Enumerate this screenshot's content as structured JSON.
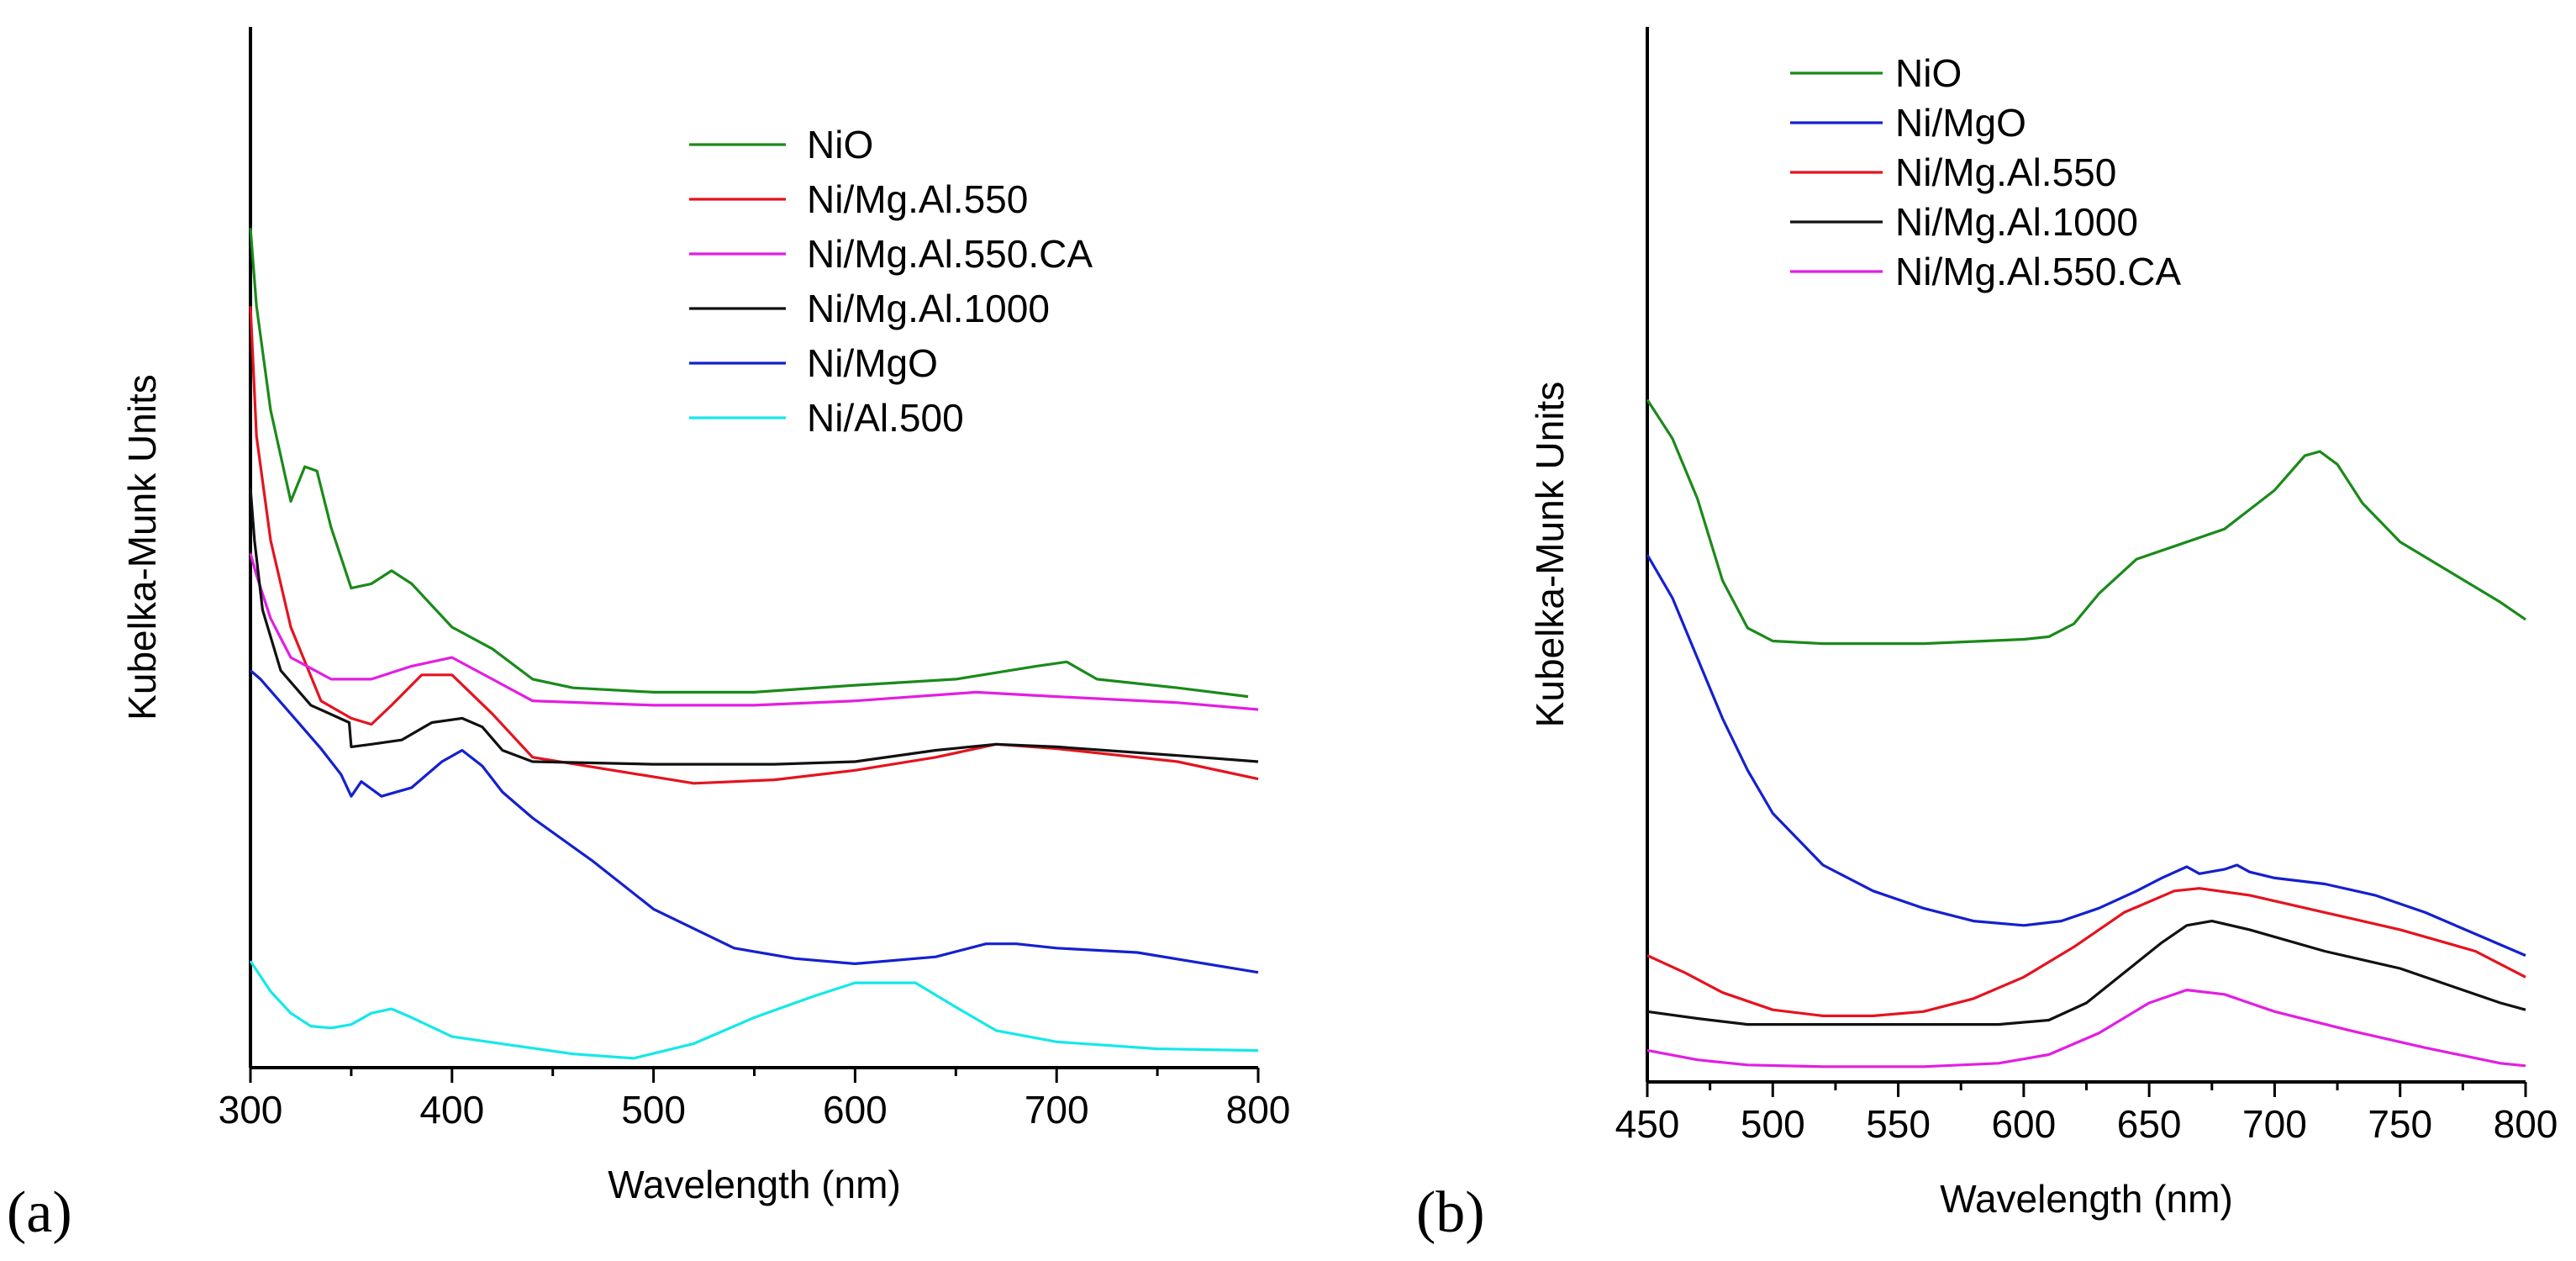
{
  "chart_data": [
    {
      "panel_label": "(a)",
      "type": "line",
      "xlabel": "Wavelength (nm)",
      "ylabel": "Kubelka-Munk Units",
      "xlim": [
        300,
        800
      ],
      "xticks": [
        300,
        400,
        500,
        600,
        700,
        800
      ],
      "ylim": [
        0,
        1
      ],
      "legend_position": "top-right",
      "series": [
        {
          "name": "NiO",
          "color": "#1a8a1a",
          "x": [
            300,
            303,
            310,
            320,
            327,
            333,
            340,
            350,
            360,
            370,
            380,
            400,
            420,
            440,
            460,
            500,
            550,
            600,
            650,
            690,
            705,
            720,
            760,
            795
          ],
          "y": [
            0.96,
            0.87,
            0.75,
            0.645,
            0.685,
            0.68,
            0.615,
            0.545,
            0.55,
            0.565,
            0.55,
            0.5,
            0.475,
            0.44,
            0.43,
            0.425,
            0.425,
            0.433,
            0.44,
            0.455,
            0.46,
            0.44,
            0.43,
            0.42
          ]
        },
        {
          "name": "Ni/Mg.Al.550",
          "color": "#e5131f",
          "x": [
            300,
            303,
            310,
            320,
            335,
            350,
            360,
            370,
            385,
            400,
            420,
            440,
            480,
            520,
            560,
            600,
            640,
            670,
            700,
            760,
            800
          ],
          "y": [
            0.87,
            0.72,
            0.6,
            0.5,
            0.415,
            0.395,
            0.388,
            0.41,
            0.445,
            0.445,
            0.4,
            0.35,
            0.335,
            0.32,
            0.324,
            0.335,
            0.35,
            0.365,
            0.36,
            0.345,
            0.325
          ]
        },
        {
          "name": "Ni/Mg.Al.550.CA",
          "color": "#e21ee2",
          "x": [
            300,
            303,
            310,
            320,
            340,
            360,
            380,
            400,
            420,
            440,
            500,
            550,
            600,
            660,
            700,
            760,
            800
          ],
          "y": [
            0.585,
            0.56,
            0.51,
            0.465,
            0.44,
            0.44,
            0.455,
            0.465,
            0.44,
            0.415,
            0.41,
            0.41,
            0.415,
            0.425,
            0.42,
            0.413,
            0.405
          ]
        },
        {
          "name": "Ni/Mg.Al.1000",
          "color": "#111111",
          "x": [
            300,
            302,
            306,
            315,
            330,
            349,
            350,
            360,
            375,
            390,
            405,
            415,
            425,
            440,
            500,
            560,
            600,
            640,
            670,
            700,
            760,
            800
          ],
          "y": [
            0.66,
            0.6,
            0.52,
            0.45,
            0.41,
            0.39,
            0.362,
            0.365,
            0.37,
            0.39,
            0.395,
            0.385,
            0.358,
            0.345,
            0.342,
            0.342,
            0.345,
            0.358,
            0.365,
            0.362,
            0.352,
            0.345
          ]
        },
        {
          "name": "Ni/MgO",
          "color": "#1420cf",
          "x": [
            300,
            305,
            320,
            335,
            345,
            350,
            355,
            365,
            380,
            395,
            405,
            415,
            425,
            440,
            470,
            500,
            540,
            570,
            600,
            640,
            665,
            680,
            700,
            740,
            800
          ],
          "y": [
            0.45,
            0.44,
            0.4,
            0.36,
            0.33,
            0.305,
            0.322,
            0.305,
            0.315,
            0.345,
            0.358,
            0.34,
            0.31,
            0.28,
            0.23,
            0.175,
            0.13,
            0.118,
            0.112,
            0.12,
            0.135,
            0.135,
            0.13,
            0.125,
            0.102
          ]
        },
        {
          "name": "Ni/Al.500",
          "color": "#14e8e8",
          "x": [
            300,
            310,
            320,
            330,
            340,
            350,
            360,
            370,
            380,
            400,
            430,
            460,
            490,
            520,
            550,
            580,
            600,
            630,
            650,
            670,
            700,
            750,
            800
          ],
          "y": [
            0.115,
            0.08,
            0.055,
            0.04,
            0.038,
            0.042,
            0.055,
            0.06,
            0.05,
            0.028,
            0.018,
            0.008,
            0.003,
            0.02,
            0.05,
            0.075,
            0.09,
            0.09,
            0.062,
            0.035,
            0.022,
            0.014,
            0.012
          ]
        }
      ]
    },
    {
      "panel_label": "(b)",
      "type": "line",
      "xlabel": "Wavelength (nm)",
      "ylabel": "Kubelka-Munk Units",
      "xlim": [
        450,
        800
      ],
      "xticks": [
        450,
        500,
        550,
        600,
        650,
        700,
        750,
        800
      ],
      "ylim": [
        0,
        1
      ],
      "legend_position": "top-left",
      "series": [
        {
          "name": "NiO",
          "color": "#1a8a1a",
          "x": [
            450,
            460,
            470,
            480,
            490,
            500,
            520,
            560,
            600,
            610,
            620,
            630,
            645,
            660,
            680,
            700,
            712,
            718,
            725,
            735,
            750,
            770,
            790,
            800
          ],
          "y": [
            0.78,
            0.735,
            0.665,
            0.57,
            0.515,
            0.5,
            0.497,
            0.497,
            0.502,
            0.505,
            0.52,
            0.555,
            0.595,
            0.61,
            0.63,
            0.675,
            0.715,
            0.72,
            0.705,
            0.66,
            0.615,
            0.58,
            0.545,
            0.525
          ]
        },
        {
          "name": "Ni/MgO",
          "color": "#1420cf",
          "x": [
            450,
            460,
            470,
            480,
            490,
            500,
            520,
            540,
            560,
            580,
            600,
            615,
            630,
            645,
            655,
            665,
            670,
            680,
            685,
            690,
            700,
            720,
            740,
            760,
            780,
            800
          ],
          "y": [
            0.6,
            0.55,
            0.48,
            0.41,
            0.35,
            0.3,
            0.24,
            0.21,
            0.19,
            0.175,
            0.17,
            0.175,
            0.19,
            0.21,
            0.225,
            0.238,
            0.23,
            0.235,
            0.24,
            0.232,
            0.225,
            0.218,
            0.205,
            0.185,
            0.16,
            0.135
          ]
        },
        {
          "name": "Ni/Mg.Al.550",
          "color": "#e5131f",
          "x": [
            450,
            465,
            480,
            500,
            520,
            540,
            560,
            580,
            600,
            620,
            640,
            660,
            670,
            690,
            720,
            750,
            780,
            800
          ],
          "y": [
            0.135,
            0.115,
            0.092,
            0.072,
            0.065,
            0.065,
            0.07,
            0.085,
            0.11,
            0.145,
            0.185,
            0.21,
            0.213,
            0.205,
            0.185,
            0.165,
            0.14,
            0.11
          ]
        },
        {
          "name": "Ni/Mg.Al.1000",
          "color": "#111111",
          "x": [
            450,
            470,
            490,
            520,
            560,
            590,
            610,
            625,
            640,
            655,
            665,
            675,
            690,
            720,
            750,
            770,
            790,
            800
          ],
          "y": [
            0.07,
            0.062,
            0.055,
            0.055,
            0.055,
            0.055,
            0.06,
            0.08,
            0.115,
            0.15,
            0.17,
            0.175,
            0.165,
            0.14,
            0.12,
            0.1,
            0.08,
            0.072
          ]
        },
        {
          "name": "Ni/Mg.Al.550.CA",
          "color": "#e21ee2",
          "x": [
            450,
            470,
            490,
            520,
            560,
            590,
            610,
            630,
            650,
            665,
            680,
            700,
            730,
            760,
            790,
            800
          ],
          "y": [
            0.025,
            0.014,
            0.008,
            0.006,
            0.006,
            0.01,
            0.02,
            0.045,
            0.08,
            0.095,
            0.09,
            0.07,
            0.048,
            0.028,
            0.01,
            0.007
          ]
        }
      ]
    }
  ]
}
